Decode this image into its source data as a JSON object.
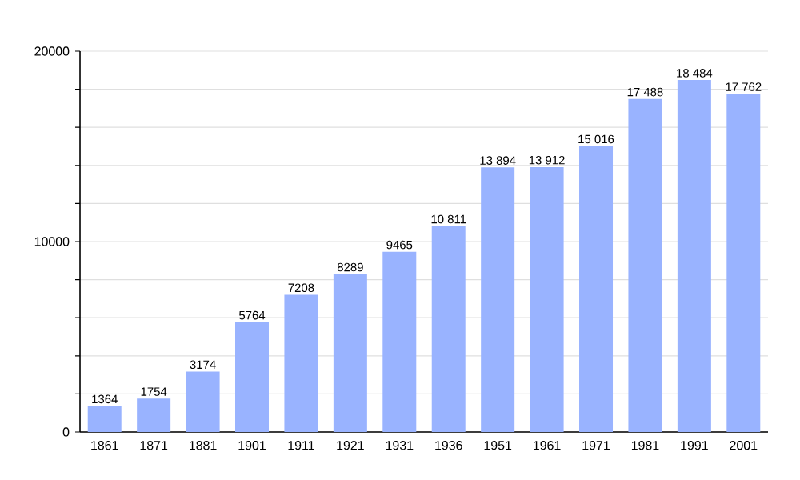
{
  "chart_data": {
    "type": "bar",
    "categories": [
      "1861",
      "1871",
      "1881",
      "1901",
      "1911",
      "1921",
      "1931",
      "1936",
      "1951",
      "1961",
      "1971",
      "1981",
      "1991",
      "2001"
    ],
    "values": [
      1364,
      1754,
      3174,
      5764,
      7208,
      8289,
      9465,
      10811,
      13894,
      13912,
      15016,
      17488,
      18484,
      17762
    ],
    "value_labels": [
      "1364",
      "1754",
      "3174",
      "5764",
      "7208",
      "8289",
      "9465",
      "10 811",
      "13 894",
      "13 912",
      "15 016",
      "17 488",
      "18 484",
      "17 762"
    ],
    "color": "#99b3ff",
    "ylim": [
      0,
      20000
    ],
    "yticks": [
      0,
      {
        "value": 2000,
        "label": null
      },
      {
        "value": 4000,
        "label": null
      },
      {
        "value": 6000,
        "label": null
      },
      {
        "value": 8000,
        "label": null
      },
      10000,
      {
        "value": 12000,
        "label": null
      },
      {
        "value": 14000,
        "label": null
      },
      {
        "value": 16000,
        "label": null
      },
      {
        "value": 18000,
        "label": null
      },
      20000
    ],
    "grid": "y"
  }
}
